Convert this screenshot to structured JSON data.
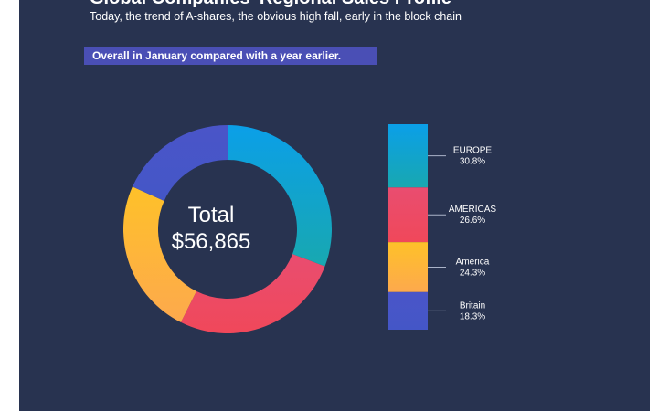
{
  "header": {
    "partial_title": "Global Companies' Regional Sales Profile",
    "subtitle": "Today, the trend of A-shares, the obvious high fall, early in the block chain",
    "banner": "Overall in January compared with a year earlier."
  },
  "center": {
    "title": "Total",
    "value": "$56,865"
  },
  "colors": {
    "background": "#283350",
    "banner": "#4a4fb5"
  },
  "chart_data": {
    "type": "pie",
    "donut": true,
    "title": "",
    "legend_position": "right",
    "series": [
      {
        "name": "EUROPE",
        "label": "30.8%",
        "value": 30.8,
        "color_top": "#0b9fe8",
        "color_bottom": "#18a8b0"
      },
      {
        "name": "AMERICAS",
        "label": "26.6%",
        "value": 26.6,
        "color_top": "#e94d70",
        "color_bottom": "#f0485a"
      },
      {
        "name": "America",
        "label": "24.3%",
        "value": 24.3,
        "color_top": "#fec129",
        "color_bottom": "#fda94d"
      },
      {
        "name": "Britain",
        "label": "18.3%",
        "value": 18.3,
        "color_top": "#4a55c8",
        "color_bottom": "#4456c7"
      }
    ]
  }
}
